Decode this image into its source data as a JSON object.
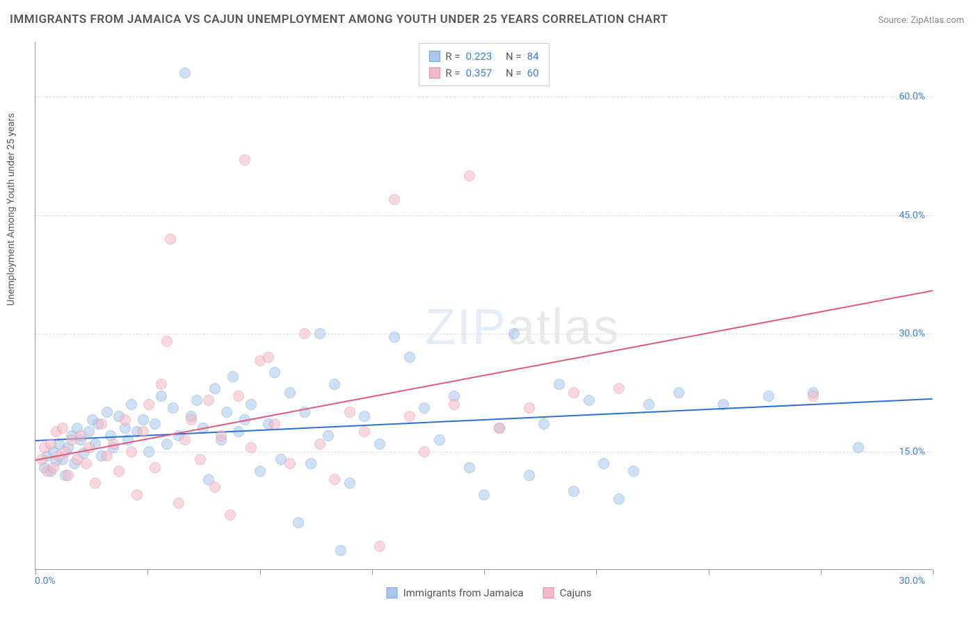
{
  "title": "IMMIGRANTS FROM JAMAICA VS CAJUN UNEMPLOYMENT AMONG YOUTH UNDER 25 YEARS CORRELATION CHART",
  "source_label": "Source: ZipAtlas.com",
  "y_axis_label": "Unemployment Among Youth under 25 years",
  "watermark": {
    "part1": "ZIP",
    "part2": "atlas"
  },
  "chart": {
    "type": "scatter",
    "background_color": "#ffffff",
    "grid_color": "#dddddd",
    "axis_color": "#999999",
    "text_color": "#555555",
    "tick_label_color": "#3b7dd8",
    "xlim": [
      0,
      30
    ],
    "ylim": [
      0,
      67
    ],
    "x_ticks": [
      0,
      3.75,
      7.5,
      11.25,
      15,
      18.75,
      22.5,
      26.25,
      30
    ],
    "x_tick_labels": {
      "min": "0.0%",
      "max": "30.0%"
    },
    "y_gridlines": [
      15,
      30,
      45,
      60
    ],
    "y_tick_labels": [
      "15.0%",
      "30.0%",
      "45.0%",
      "60.0%"
    ],
    "point_radius": 8,
    "point_opacity": 0.55,
    "series": [
      {
        "name": "Immigrants from Jamaica",
        "fill_color": "#a9c7ec",
        "stroke_color": "#6fa3de",
        "line_color": "#2f6fd0",
        "r_value": "0.223",
        "n_value": "84",
        "trend": {
          "x1": 0,
          "y1": 16.5,
          "x2": 30,
          "y2": 21.8
        },
        "points": [
          [
            0.3,
            13.0
          ],
          [
            0.4,
            14.5
          ],
          [
            0.5,
            12.5
          ],
          [
            0.6,
            15.0
          ],
          [
            0.7,
            13.8
          ],
          [
            0.8,
            16.0
          ],
          [
            0.9,
            14.0
          ],
          [
            1.0,
            12.0
          ],
          [
            1.1,
            15.5
          ],
          [
            1.2,
            17.0
          ],
          [
            1.3,
            13.5
          ],
          [
            1.4,
            18.0
          ],
          [
            1.5,
            16.5
          ],
          [
            1.6,
            14.8
          ],
          [
            1.8,
            17.5
          ],
          [
            1.9,
            19.0
          ],
          [
            2.0,
            16.0
          ],
          [
            2.1,
            18.5
          ],
          [
            2.2,
            14.5
          ],
          [
            2.4,
            20.0
          ],
          [
            2.5,
            17.0
          ],
          [
            2.6,
            15.5
          ],
          [
            2.8,
            19.5
          ],
          [
            3.0,
            18.0
          ],
          [
            3.1,
            16.5
          ],
          [
            3.2,
            21.0
          ],
          [
            3.4,
            17.5
          ],
          [
            3.6,
            19.0
          ],
          [
            3.8,
            15.0
          ],
          [
            4.0,
            18.5
          ],
          [
            4.2,
            22.0
          ],
          [
            4.4,
            16.0
          ],
          [
            4.6,
            20.5
          ],
          [
            4.8,
            17.0
          ],
          [
            5.0,
            63.0
          ],
          [
            5.2,
            19.5
          ],
          [
            5.4,
            21.5
          ],
          [
            5.6,
            18.0
          ],
          [
            5.8,
            11.5
          ],
          [
            6.0,
            23.0
          ],
          [
            6.2,
            16.5
          ],
          [
            6.4,
            20.0
          ],
          [
            6.6,
            24.5
          ],
          [
            6.8,
            17.5
          ],
          [
            7.0,
            19.0
          ],
          [
            7.2,
            21.0
          ],
          [
            7.5,
            12.5
          ],
          [
            7.8,
            18.5
          ],
          [
            8.0,
            25.0
          ],
          [
            8.2,
            14.0
          ],
          [
            8.5,
            22.5
          ],
          [
            8.8,
            6.0
          ],
          [
            9.0,
            20.0
          ],
          [
            9.2,
            13.5
          ],
          [
            9.5,
            30.0
          ],
          [
            9.8,
            17.0
          ],
          [
            10.0,
            23.5
          ],
          [
            10.2,
            2.5
          ],
          [
            10.5,
            11.0
          ],
          [
            11.0,
            19.5
          ],
          [
            11.5,
            16.0
          ],
          [
            12.0,
            29.5
          ],
          [
            12.5,
            27.0
          ],
          [
            13.0,
            20.5
          ],
          [
            13.5,
            16.5
          ],
          [
            14.0,
            22.0
          ],
          [
            14.5,
            13.0
          ],
          [
            15.0,
            9.5
          ],
          [
            15.5,
            18.0
          ],
          [
            16.0,
            30.0
          ],
          [
            16.5,
            12.0
          ],
          [
            17.0,
            18.5
          ],
          [
            17.5,
            23.5
          ],
          [
            18.0,
            10.0
          ],
          [
            18.5,
            21.5
          ],
          [
            19.0,
            13.5
          ],
          [
            19.5,
            9.0
          ],
          [
            20.0,
            12.5
          ],
          [
            20.5,
            21.0
          ],
          [
            21.5,
            22.5
          ],
          [
            23.0,
            21.0
          ],
          [
            24.5,
            22.0
          ],
          [
            27.5,
            15.5
          ],
          [
            26.0,
            22.5
          ]
        ]
      },
      {
        "name": "Cajuns",
        "fill_color": "#f2b9c6",
        "stroke_color": "#e88ba2",
        "line_color": "#e15a7d",
        "r_value": "0.357",
        "n_value": "60",
        "trend": {
          "x1": 0,
          "y1": 14.0,
          "x2": 30,
          "y2": 35.5
        },
        "points": [
          [
            0.2,
            14.0
          ],
          [
            0.3,
            15.5
          ],
          [
            0.4,
            12.5
          ],
          [
            0.5,
            16.0
          ],
          [
            0.6,
            13.0
          ],
          [
            0.7,
            17.5
          ],
          [
            0.8,
            14.5
          ],
          [
            0.9,
            18.0
          ],
          [
            1.0,
            15.0
          ],
          [
            1.1,
            12.0
          ],
          [
            1.2,
            16.5
          ],
          [
            1.4,
            14.0
          ],
          [
            1.5,
            17.0
          ],
          [
            1.7,
            13.5
          ],
          [
            1.8,
            15.5
          ],
          [
            2.0,
            11.0
          ],
          [
            2.2,
            18.5
          ],
          [
            2.4,
            14.5
          ],
          [
            2.6,
            16.0
          ],
          [
            2.8,
            12.5
          ],
          [
            3.0,
            19.0
          ],
          [
            3.2,
            15.0
          ],
          [
            3.4,
            9.5
          ],
          [
            3.6,
            17.5
          ],
          [
            3.8,
            21.0
          ],
          [
            4.0,
            13.0
          ],
          [
            4.2,
            23.5
          ],
          [
            4.4,
            29.0
          ],
          [
            4.5,
            42.0
          ],
          [
            4.8,
            8.5
          ],
          [
            5.0,
            16.5
          ],
          [
            5.2,
            19.0
          ],
          [
            5.5,
            14.0
          ],
          [
            5.8,
            21.5
          ],
          [
            6.0,
            10.5
          ],
          [
            6.2,
            17.0
          ],
          [
            6.5,
            7.0
          ],
          [
            6.8,
            22.0
          ],
          [
            7.0,
            52.0
          ],
          [
            7.2,
            15.5
          ],
          [
            7.5,
            26.5
          ],
          [
            7.8,
            27.0
          ],
          [
            8.0,
            18.5
          ],
          [
            8.5,
            13.5
          ],
          [
            9.0,
            30.0
          ],
          [
            9.5,
            16.0
          ],
          [
            10.0,
            11.5
          ],
          [
            10.5,
            20.0
          ],
          [
            11.0,
            17.5
          ],
          [
            11.5,
            3.0
          ],
          [
            12.0,
            47.0
          ],
          [
            12.5,
            19.5
          ],
          [
            13.0,
            15.0
          ],
          [
            14.0,
            21.0
          ],
          [
            14.5,
            50.0
          ],
          [
            15.5,
            18.0
          ],
          [
            16.5,
            20.5
          ],
          [
            18.0,
            22.5
          ],
          [
            19.5,
            23.0
          ],
          [
            26.0,
            22.0
          ]
        ]
      }
    ]
  },
  "legend_top": {
    "r_label": "R =",
    "n_label": "N ="
  },
  "legend_bottom": [
    {
      "label": "Immigrants from Jamaica",
      "fill": "#a9c7ec",
      "stroke": "#6fa3de"
    },
    {
      "label": "Cajuns",
      "fill": "#f2b9c6",
      "stroke": "#e88ba2"
    }
  ]
}
